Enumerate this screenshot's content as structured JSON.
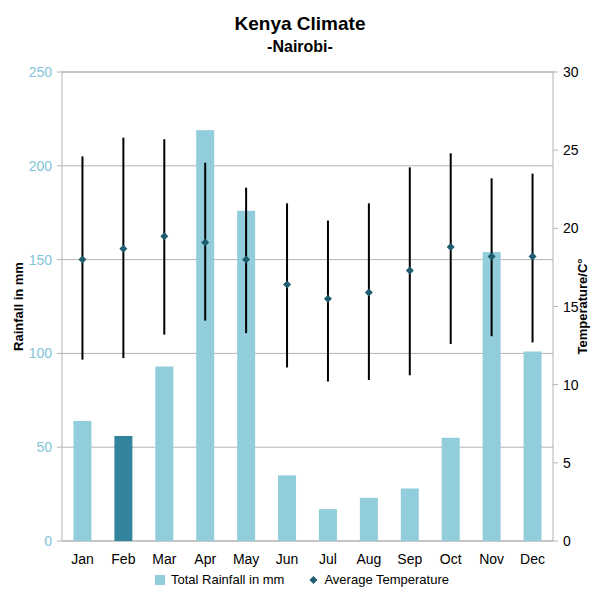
{
  "chart_data": {
    "type": "bar",
    "title": "Kenya Climate",
    "subtitle": "-Nairobi-",
    "categories": [
      "Jan",
      "Feb",
      "Mar",
      "Apr",
      "May",
      "Jun",
      "Jul",
      "Aug",
      "Sep",
      "Oct",
      "Nov",
      "Dec"
    ],
    "y_label": "Rainfall in mm",
    "y2_label": "Temperature/C°",
    "ylim": [
      0,
      250
    ],
    "yticks": [
      0,
      50,
      100,
      150,
      200,
      250
    ],
    "y2lim": [
      0,
      30
    ],
    "y2ticks": [
      0,
      5,
      10,
      15,
      20,
      25,
      30
    ],
    "grid": true,
    "legend": "bottom",
    "series": [
      {
        "name": "Total Rainfall in mm",
        "type": "bar",
        "colors": [
          "#92cddc",
          "#31849b",
          "#92cddc",
          "#92cddc",
          "#92cddc",
          "#92cddc",
          "#92cddc",
          "#92cddc",
          "#92cddc",
          "#92cddc",
          "#92cddc",
          "#92cddc"
        ],
        "values": [
          64,
          56,
          93,
          219,
          176,
          35,
          17,
          23,
          28,
          55,
          154,
          101
        ]
      },
      {
        "name": "Average Temperature",
        "type": "scatter",
        "axis": "y2",
        "marker": "diamond",
        "color": "#1f5c6e",
        "values": [
          18.0,
          18.7,
          19.5,
          19.1,
          18.0,
          16.4,
          15.5,
          15.9,
          17.3,
          18.8,
          18.2,
          18.2
        ],
        "low": [
          11.6,
          11.7,
          13.2,
          14.1,
          13.3,
          11.1,
          10.2,
          10.3,
          10.6,
          12.6,
          13.1,
          12.7
        ],
        "high": [
          24.6,
          25.8,
          25.7,
          24.2,
          22.6,
          21.6,
          20.5,
          21.6,
          23.9,
          24.8,
          23.2,
          23.5
        ]
      }
    ]
  }
}
